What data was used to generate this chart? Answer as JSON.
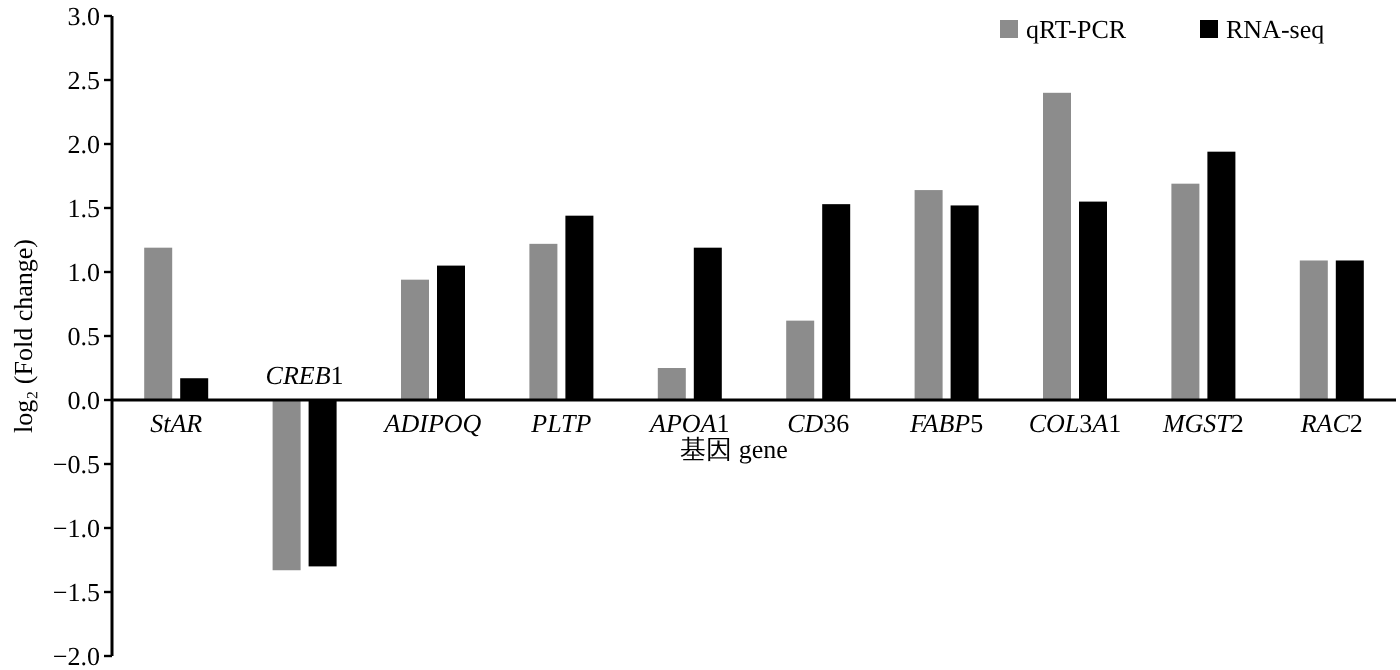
{
  "chart_data": {
    "type": "bar",
    "categories": [
      "StAR",
      "CREB1",
      "ADIPOQ",
      "PLTP",
      "APOA1",
      "CD36",
      "FABP5",
      "COL3A1",
      "MGST2",
      "RAC2"
    ],
    "series": [
      {
        "name": "qRT-PCR",
        "color": "#8c8c8c",
        "values": [
          1.19,
          -1.33,
          0.94,
          1.22,
          0.25,
          0.62,
          1.64,
          2.4,
          1.69,
          1.09
        ]
      },
      {
        "name": "RNA-seq",
        "color": "#000000",
        "values": [
          0.17,
          -1.3,
          1.05,
          1.44,
          1.19,
          1.53,
          1.52,
          1.55,
          1.94,
          1.09
        ]
      }
    ],
    "xlabel": "基因 gene",
    "ylabel": "log₂ (Fold change)",
    "ylim": [
      -2.0,
      3.0
    ],
    "yticks": [
      {
        "value": -2,
        "label": "−2.0"
      },
      {
        "value": -1.5,
        "label": "−1.5"
      },
      {
        "value": -1,
        "label": "−1.0"
      },
      {
        "value": -0.5,
        "label": "−0.5"
      },
      {
        "value": 0,
        "label": "0.0"
      },
      {
        "value": 0.5,
        "label": "0.5"
      },
      {
        "value": 1,
        "label": "1.0"
      },
      {
        "value": 1.5,
        "label": "1.5"
      },
      {
        "value": 2,
        "label": "2.0"
      },
      {
        "value": 2.5,
        "label": "2.5"
      },
      {
        "value": 3,
        "label": "3.0"
      }
    ],
    "grid": false,
    "legend": "top right"
  }
}
